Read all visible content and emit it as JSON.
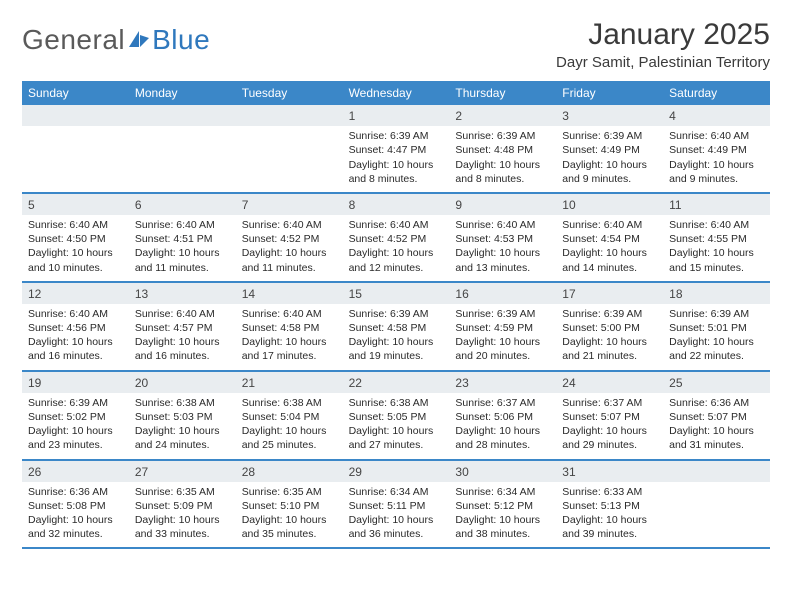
{
  "logo": {
    "text1": "General",
    "text2": "Blue",
    "color_gray": "#6a6a6a",
    "color_blue": "#2f78bd"
  },
  "title": "January 2025",
  "subtitle": "Dayr Samit, Palestinian Territory",
  "colors": {
    "header_bg": "#3b87c8",
    "daynum_bg": "#e9edf0",
    "border": "#3b87c8",
    "text": "#2a2a2a",
    "title_text": "#3a3a3a"
  },
  "fonts": {
    "title_size": 30,
    "subtitle_size": 15,
    "weekday_size": 12,
    "body_size": 10.5
  },
  "weekdays": [
    "Sunday",
    "Monday",
    "Tuesday",
    "Wednesday",
    "Thursday",
    "Friday",
    "Saturday"
  ],
  "weeks": [
    [
      null,
      null,
      null,
      {
        "n": "1",
        "sunrise": "Sunrise: 6:39 AM",
        "sunset": "Sunset: 4:47 PM",
        "d1": "Daylight: 10 hours",
        "d2": "and 8 minutes."
      },
      {
        "n": "2",
        "sunrise": "Sunrise: 6:39 AM",
        "sunset": "Sunset: 4:48 PM",
        "d1": "Daylight: 10 hours",
        "d2": "and 8 minutes."
      },
      {
        "n": "3",
        "sunrise": "Sunrise: 6:39 AM",
        "sunset": "Sunset: 4:49 PM",
        "d1": "Daylight: 10 hours",
        "d2": "and 9 minutes."
      },
      {
        "n": "4",
        "sunrise": "Sunrise: 6:40 AM",
        "sunset": "Sunset: 4:49 PM",
        "d1": "Daylight: 10 hours",
        "d2": "and 9 minutes."
      }
    ],
    [
      {
        "n": "5",
        "sunrise": "Sunrise: 6:40 AM",
        "sunset": "Sunset: 4:50 PM",
        "d1": "Daylight: 10 hours",
        "d2": "and 10 minutes."
      },
      {
        "n": "6",
        "sunrise": "Sunrise: 6:40 AM",
        "sunset": "Sunset: 4:51 PM",
        "d1": "Daylight: 10 hours",
        "d2": "and 11 minutes."
      },
      {
        "n": "7",
        "sunrise": "Sunrise: 6:40 AM",
        "sunset": "Sunset: 4:52 PM",
        "d1": "Daylight: 10 hours",
        "d2": "and 11 minutes."
      },
      {
        "n": "8",
        "sunrise": "Sunrise: 6:40 AM",
        "sunset": "Sunset: 4:52 PM",
        "d1": "Daylight: 10 hours",
        "d2": "and 12 minutes."
      },
      {
        "n": "9",
        "sunrise": "Sunrise: 6:40 AM",
        "sunset": "Sunset: 4:53 PM",
        "d1": "Daylight: 10 hours",
        "d2": "and 13 minutes."
      },
      {
        "n": "10",
        "sunrise": "Sunrise: 6:40 AM",
        "sunset": "Sunset: 4:54 PM",
        "d1": "Daylight: 10 hours",
        "d2": "and 14 minutes."
      },
      {
        "n": "11",
        "sunrise": "Sunrise: 6:40 AM",
        "sunset": "Sunset: 4:55 PM",
        "d1": "Daylight: 10 hours",
        "d2": "and 15 minutes."
      }
    ],
    [
      {
        "n": "12",
        "sunrise": "Sunrise: 6:40 AM",
        "sunset": "Sunset: 4:56 PM",
        "d1": "Daylight: 10 hours",
        "d2": "and 16 minutes."
      },
      {
        "n": "13",
        "sunrise": "Sunrise: 6:40 AM",
        "sunset": "Sunset: 4:57 PM",
        "d1": "Daylight: 10 hours",
        "d2": "and 16 minutes."
      },
      {
        "n": "14",
        "sunrise": "Sunrise: 6:40 AM",
        "sunset": "Sunset: 4:58 PM",
        "d1": "Daylight: 10 hours",
        "d2": "and 17 minutes."
      },
      {
        "n": "15",
        "sunrise": "Sunrise: 6:39 AM",
        "sunset": "Sunset: 4:58 PM",
        "d1": "Daylight: 10 hours",
        "d2": "and 19 minutes."
      },
      {
        "n": "16",
        "sunrise": "Sunrise: 6:39 AM",
        "sunset": "Sunset: 4:59 PM",
        "d1": "Daylight: 10 hours",
        "d2": "and 20 minutes."
      },
      {
        "n": "17",
        "sunrise": "Sunrise: 6:39 AM",
        "sunset": "Sunset: 5:00 PM",
        "d1": "Daylight: 10 hours",
        "d2": "and 21 minutes."
      },
      {
        "n": "18",
        "sunrise": "Sunrise: 6:39 AM",
        "sunset": "Sunset: 5:01 PM",
        "d1": "Daylight: 10 hours",
        "d2": "and 22 minutes."
      }
    ],
    [
      {
        "n": "19",
        "sunrise": "Sunrise: 6:39 AM",
        "sunset": "Sunset: 5:02 PM",
        "d1": "Daylight: 10 hours",
        "d2": "and 23 minutes."
      },
      {
        "n": "20",
        "sunrise": "Sunrise: 6:38 AM",
        "sunset": "Sunset: 5:03 PM",
        "d1": "Daylight: 10 hours",
        "d2": "and 24 minutes."
      },
      {
        "n": "21",
        "sunrise": "Sunrise: 6:38 AM",
        "sunset": "Sunset: 5:04 PM",
        "d1": "Daylight: 10 hours",
        "d2": "and 25 minutes."
      },
      {
        "n": "22",
        "sunrise": "Sunrise: 6:38 AM",
        "sunset": "Sunset: 5:05 PM",
        "d1": "Daylight: 10 hours",
        "d2": "and 27 minutes."
      },
      {
        "n": "23",
        "sunrise": "Sunrise: 6:37 AM",
        "sunset": "Sunset: 5:06 PM",
        "d1": "Daylight: 10 hours",
        "d2": "and 28 minutes."
      },
      {
        "n": "24",
        "sunrise": "Sunrise: 6:37 AM",
        "sunset": "Sunset: 5:07 PM",
        "d1": "Daylight: 10 hours",
        "d2": "and 29 minutes."
      },
      {
        "n": "25",
        "sunrise": "Sunrise: 6:36 AM",
        "sunset": "Sunset: 5:07 PM",
        "d1": "Daylight: 10 hours",
        "d2": "and 31 minutes."
      }
    ],
    [
      {
        "n": "26",
        "sunrise": "Sunrise: 6:36 AM",
        "sunset": "Sunset: 5:08 PM",
        "d1": "Daylight: 10 hours",
        "d2": "and 32 minutes."
      },
      {
        "n": "27",
        "sunrise": "Sunrise: 6:35 AM",
        "sunset": "Sunset: 5:09 PM",
        "d1": "Daylight: 10 hours",
        "d2": "and 33 minutes."
      },
      {
        "n": "28",
        "sunrise": "Sunrise: 6:35 AM",
        "sunset": "Sunset: 5:10 PM",
        "d1": "Daylight: 10 hours",
        "d2": "and 35 minutes."
      },
      {
        "n": "29",
        "sunrise": "Sunrise: 6:34 AM",
        "sunset": "Sunset: 5:11 PM",
        "d1": "Daylight: 10 hours",
        "d2": "and 36 minutes."
      },
      {
        "n": "30",
        "sunrise": "Sunrise: 6:34 AM",
        "sunset": "Sunset: 5:12 PM",
        "d1": "Daylight: 10 hours",
        "d2": "and 38 minutes."
      },
      {
        "n": "31",
        "sunrise": "Sunrise: 6:33 AM",
        "sunset": "Sunset: 5:13 PM",
        "d1": "Daylight: 10 hours",
        "d2": "and 39 minutes."
      },
      null
    ]
  ]
}
